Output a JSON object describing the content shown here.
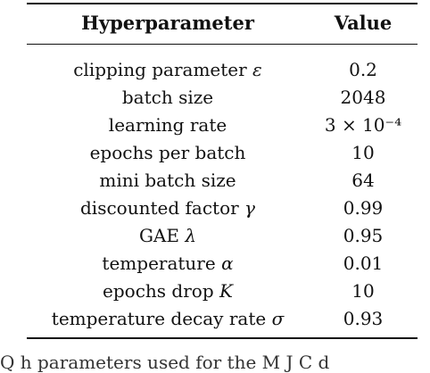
{
  "table": {
    "headers": {
      "param": "Hyperparameter",
      "value": "Value"
    },
    "rows": [
      {
        "name": "clipping parameter",
        "symbol": "ε",
        "value": "0.2"
      },
      {
        "name": "batch size",
        "symbol": "",
        "value": "2048"
      },
      {
        "name": "learning rate",
        "symbol": "",
        "value": "3 × 10⁻⁴"
      },
      {
        "name": "epochs per batch",
        "symbol": "",
        "value": "10"
      },
      {
        "name": "mini batch size",
        "symbol": "",
        "value": "64"
      },
      {
        "name": "discounted factor",
        "symbol": "γ",
        "value": "0.99"
      },
      {
        "name": "GAE",
        "symbol": "λ",
        "value": "0.95"
      },
      {
        "name": "temperature",
        "symbol": "α",
        "value": "0.01"
      },
      {
        "name": "epochs drop",
        "symbol": "K",
        "value": "10"
      },
      {
        "name": "temperature decay rate",
        "symbol": "σ",
        "value": "0.93"
      }
    ]
  },
  "caption": "Q   h    parameters used for the M  J  C  d"
}
